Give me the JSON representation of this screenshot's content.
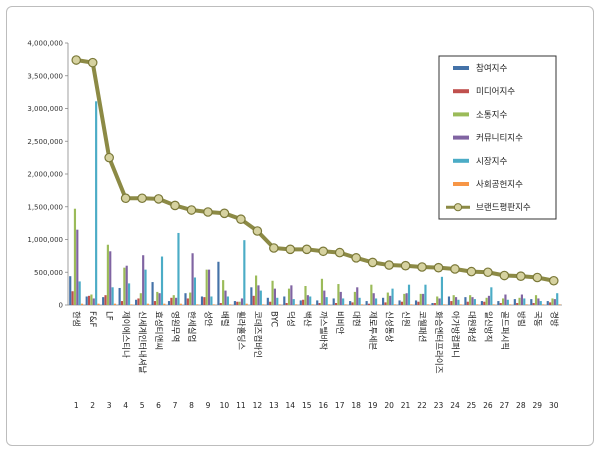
{
  "chart_data": {
    "type": "bar",
    "title": "",
    "xlabel": "",
    "ylabel": "",
    "ylim": [
      0,
      4000000
    ],
    "yticks": [
      "0",
      "500,000",
      "1,000,000",
      "1,500,000",
      "2,000,000",
      "2,500,000",
      "3,000,000",
      "3,500,000",
      "4,000,000"
    ],
    "grid": false,
    "legend_position": "top-right",
    "categories": [
      "한샘",
      "F&F",
      "LF",
      "제이에스티나",
      "신세계인터내셔날",
      "효성티앤씨",
      "영원무역",
      "한세실업",
      "성안",
      "배럴",
      "휠라홀딩스",
      "코데즈컴바인",
      "BYC",
      "덕성",
      "백산",
      "까스텔바작",
      "비비안",
      "대현",
      "제로투세븐",
      "신성통상",
      "신원",
      "코웰패션",
      "화승엔터프라이즈",
      "아가방컴퍼니",
      "대원화성",
      "일신방직",
      "골드퍼시픽",
      "방림",
      "국동",
      "경방"
    ],
    "ranks": [
      "1",
      "2",
      "3",
      "4",
      "5",
      "6",
      "7",
      "8",
      "9",
      "10",
      "11",
      "12",
      "13",
      "14",
      "15",
      "16",
      "17",
      "18",
      "19",
      "20",
      "21",
      "22",
      "23",
      "24",
      "25",
      "26",
      "27",
      "28",
      "29",
      "30"
    ],
    "series": [
      {
        "name": "참여지수",
        "color": "#4472a8",
        "values": [
          440000,
          130000,
          120000,
          260000,
          80000,
          350000,
          60000,
          180000,
          130000,
          660000,
          60000,
          270000,
          110000,
          130000,
          70000,
          70000,
          100000,
          60000,
          60000,
          110000,
          70000,
          70000,
          30000,
          130000,
          120000,
          60000,
          60000,
          90000,
          90000,
          60000
        ]
      },
      {
        "name": "미디어지수",
        "color": "#c0504d",
        "values": [
          210000,
          140000,
          150000,
          60000,
          100000,
          60000,
          110000,
          100000,
          120000,
          30000,
          50000,
          140000,
          50000,
          30000,
          80000,
          30000,
          30000,
          40000,
          20000,
          40000,
          50000,
          50000,
          30000,
          60000,
          50000,
          50000,
          30000,
          30000,
          30000,
          40000
        ]
      },
      {
        "name": "소통지수",
        "color": "#9bbb59",
        "values": [
          1470000,
          160000,
          920000,
          570000,
          180000,
          200000,
          150000,
          190000,
          540000,
          380000,
          50000,
          450000,
          370000,
          250000,
          290000,
          400000,
          320000,
          200000,
          310000,
          190000,
          170000,
          170000,
          130000,
          150000,
          150000,
          110000,
          100000,
          110000,
          150000,
          100000
        ]
      },
      {
        "name": "커뮤니티지수",
        "color": "#8064a2",
        "values": [
          1150000,
          100000,
          820000,
          600000,
          760000,
          180000,
          110000,
          790000,
          540000,
          220000,
          100000,
          300000,
          250000,
          300000,
          150000,
          220000,
          200000,
          270000,
          180000,
          140000,
          180000,
          170000,
          100000,
          120000,
          120000,
          140000,
          160000,
          160000,
          100000,
          90000
        ]
      },
      {
        "name": "시장지수",
        "color": "#4bacc6",
        "values": [
          360000,
          3110000,
          270000,
          330000,
          540000,
          740000,
          1100000,
          420000,
          130000,
          130000,
          990000,
          220000,
          110000,
          90000,
          130000,
          120000,
          100000,
          110000,
          100000,
          250000,
          310000,
          310000,
          430000,
          80000,
          90000,
          270000,
          80000,
          100000,
          60000,
          180000
        ]
      },
      {
        "name": "사회공헌지수",
        "color": "#f79646",
        "values": [
          20000,
          20000,
          20000,
          10000,
          20000,
          20000,
          20000,
          10000,
          10000,
          10000,
          20000,
          10000,
          10000,
          10000,
          10000,
          10000,
          10000,
          10000,
          10000,
          10000,
          10000,
          10000,
          10000,
          10000,
          10000,
          10000,
          10000,
          10000,
          10000,
          10000
        ]
      },
      {
        "name": "브랜드평판지수",
        "color": "#7f7f2e",
        "values": [
          3740000,
          3700000,
          2250000,
          1630000,
          1630000,
          1620000,
          1520000,
          1450000,
          1420000,
          1400000,
          1310000,
          1130000,
          870000,
          850000,
          850000,
          820000,
          800000,
          720000,
          650000,
          610000,
          600000,
          580000,
          570000,
          550000,
          510000,
          500000,
          450000,
          440000,
          420000,
          370000
        ]
      }
    ]
  }
}
